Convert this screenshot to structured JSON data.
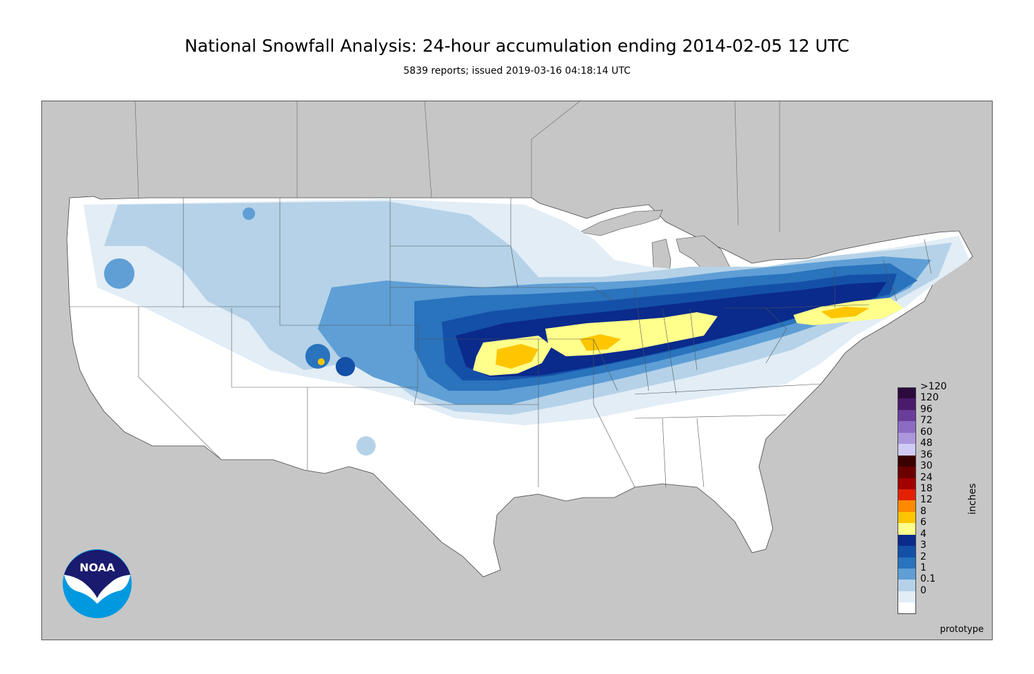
{
  "title": "National Snowfall Analysis: 24-hour accumulation ending 2014-02-05 12 UTC",
  "subtitle": "5839 reports; issued 2019-03-16 04:18:14 UTC",
  "watermark": "prototype",
  "logo_text": "NOAA",
  "legend": {
    "unit": "inches",
    "bins": [
      {
        "label": ">120",
        "color": "#2b0a3d"
      },
      {
        "label": "120",
        "color": "#4a1a6b"
      },
      {
        "label": "96",
        "color": "#6a3d9a"
      },
      {
        "label": "72",
        "color": "#8c6bc2"
      },
      {
        "label": "60",
        "color": "#ab97dc"
      },
      {
        "label": "48",
        "color": "#d0cbf5"
      },
      {
        "label": "36",
        "color": "#3a0000"
      },
      {
        "label": "30",
        "color": "#6b0000"
      },
      {
        "label": "24",
        "color": "#a30000"
      },
      {
        "label": "18",
        "color": "#e32000"
      },
      {
        "label": "12",
        "color": "#ff8a00"
      },
      {
        "label": "8",
        "color": "#ffc600"
      },
      {
        "label": "6",
        "color": "#ffff8c"
      },
      {
        "label": "4",
        "color": "#0a2a8c"
      },
      {
        "label": "3",
        "color": "#1450a8"
      },
      {
        "label": "2",
        "color": "#2a73bd"
      },
      {
        "label": "1",
        "color": "#5f9fd6"
      },
      {
        "label": "0.1",
        "color": "#b5d2e8"
      },
      {
        "label": "0",
        "color": "#e2edf6"
      },
      {
        "label": "",
        "color": "#ffffff"
      }
    ]
  },
  "colors": {
    "background": "#c6c6c6",
    "land": "#ffffff",
    "trace": "#e2edf6",
    "light": "#b5d2e8",
    "one": "#5f9fd6",
    "two": "#2a73bd",
    "three": "#1450a8",
    "four": "#0a2a8c",
    "six": "#ffff8c",
    "eight": "#ffc600"
  }
}
